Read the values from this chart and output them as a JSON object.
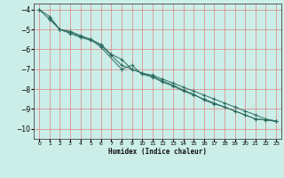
{
  "xlabel": "Humidex (Indice chaleur)",
  "background_color": "#cceee8",
  "grid_color": "#e08080",
  "line_color": "#2d6e62",
  "xlim": [
    -0.5,
    23.5
  ],
  "ylim": [
    -10.5,
    -3.7
  ],
  "xticks": [
    0,
    1,
    2,
    3,
    4,
    5,
    6,
    7,
    8,
    9,
    10,
    11,
    12,
    13,
    14,
    15,
    16,
    17,
    18,
    19,
    20,
    21,
    22,
    23
  ],
  "yticks": [
    -10,
    -9,
    -8,
    -7,
    -6,
    -5,
    -4
  ],
  "line1_x": [
    0,
    1,
    2,
    3,
    4,
    5,
    6,
    7,
    8,
    9,
    10,
    11,
    12,
    13,
    14,
    15,
    16,
    17,
    18,
    19,
    20,
    21,
    22,
    23
  ],
  "line1_y": [
    -4.0,
    -4.35,
    -5.0,
    -5.1,
    -5.3,
    -5.5,
    -5.75,
    -6.25,
    -6.5,
    -7.0,
    -7.2,
    -7.3,
    -7.5,
    -7.7,
    -7.9,
    -8.1,
    -8.3,
    -8.5,
    -8.7,
    -8.9,
    -9.1,
    -9.3,
    -9.5,
    -9.6
  ],
  "line2_x": [
    0,
    1,
    2,
    3,
    4,
    5,
    6,
    7,
    8,
    9,
    10,
    11,
    12,
    13,
    14,
    15,
    16,
    17,
    18,
    19,
    20,
    21,
    22,
    23
  ],
  "line2_y": [
    -4.0,
    -4.5,
    -5.0,
    -5.2,
    -5.4,
    -5.55,
    -5.8,
    -6.3,
    -6.8,
    -7.0,
    -7.2,
    -7.35,
    -7.6,
    -7.8,
    -8.05,
    -8.25,
    -8.55,
    -8.75,
    -8.9,
    -9.1,
    -9.3,
    -9.5,
    -9.55,
    -9.62
  ],
  "line3_x": [
    1,
    2,
    3,
    4,
    5,
    6,
    8,
    9,
    10,
    11,
    12,
    13,
    14,
    15,
    16,
    17,
    18,
    19,
    20,
    21,
    22,
    23
  ],
  "line3_y": [
    -4.4,
    -5.0,
    -5.15,
    -5.35,
    -5.5,
    -5.9,
    -7.0,
    -6.8,
    -7.25,
    -7.4,
    -7.65,
    -7.85,
    -8.1,
    -8.3,
    -8.5,
    -8.7,
    -8.9,
    -9.1,
    -9.3,
    -9.5,
    -9.55,
    -9.62
  ]
}
